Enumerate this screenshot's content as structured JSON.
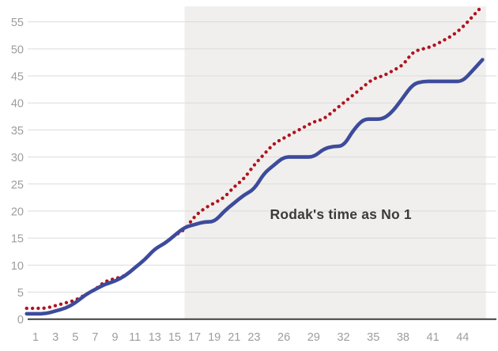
{
  "chart_data": {
    "type": "line",
    "title": "",
    "xlabel": "",
    "ylabel": "",
    "x": [
      1,
      2,
      3,
      4,
      5,
      6,
      7,
      8,
      9,
      10,
      11,
      12,
      13,
      14,
      15,
      16,
      17,
      18,
      19,
      20,
      21,
      22,
      23,
      24,
      25,
      26,
      27,
      28,
      29,
      30,
      31,
      32,
      33,
      34,
      35,
      36,
      37,
      38,
      39,
      40,
      41,
      42,
      43,
      44,
      45,
      46
    ],
    "series": [
      {
        "name": "red-dotted-series",
        "style": "dotted",
        "color": "#b0121f",
        "values": [
          2,
          2,
          2.5,
          3,
          3.5,
          4.5,
          5.5,
          7,
          7.5,
          8,
          9.5,
          11,
          13,
          14,
          15.5,
          16.5,
          19,
          20.5,
          21.5,
          22.5,
          24.5,
          26,
          28.5,
          30.5,
          32.5,
          33.5,
          34.5,
          35.5,
          36.5,
          37,
          38.5,
          40,
          41.5,
          43,
          44.5,
          45,
          46,
          47,
          49.5,
          50,
          50.5,
          51.5,
          52.5,
          54,
          56,
          58
        ]
      },
      {
        "name": "blue-solid-series",
        "style": "solid",
        "color": "#3d4b9b",
        "values": [
          1,
          1,
          1.5,
          2,
          3,
          4.5,
          5.5,
          6.5,
          7,
          8,
          9.5,
          11,
          13,
          14,
          15.5,
          17,
          17.5,
          18,
          18,
          20,
          21.5,
          23,
          24,
          27,
          28.5,
          30,
          30,
          30,
          30,
          31.5,
          32,
          32,
          35,
          37,
          37,
          37,
          38.5,
          41,
          43.5,
          44,
          44,
          44,
          44,
          44,
          46,
          48
        ]
      }
    ],
    "x_tick_labels": [
      1,
      3,
      5,
      7,
      9,
      11,
      13,
      15,
      17,
      19,
      21,
      23,
      26,
      29,
      32,
      35,
      38,
      41,
      44
    ],
    "y_ticks": [
      0,
      5,
      10,
      15,
      20,
      25,
      30,
      35,
      40,
      45,
      50,
      55
    ],
    "xlim": [
      0.1,
      46.5
    ],
    "ylim": [
      0,
      58.5
    ],
    "grid": true,
    "legend": "none",
    "shaded_region": {
      "x_start": 16,
      "x_end": 46.35,
      "color": "#f0efed"
    },
    "annotation": {
      "text": "Rodak's time as No 1",
      "x": 24.6,
      "y": 20.9
    },
    "axis_colors": {
      "gridline": "#dbdbdb",
      "axis_line": "#3e3e3e",
      "tick_label": "#9d9d9d",
      "annotation_text": "#3a3a3a"
    }
  }
}
